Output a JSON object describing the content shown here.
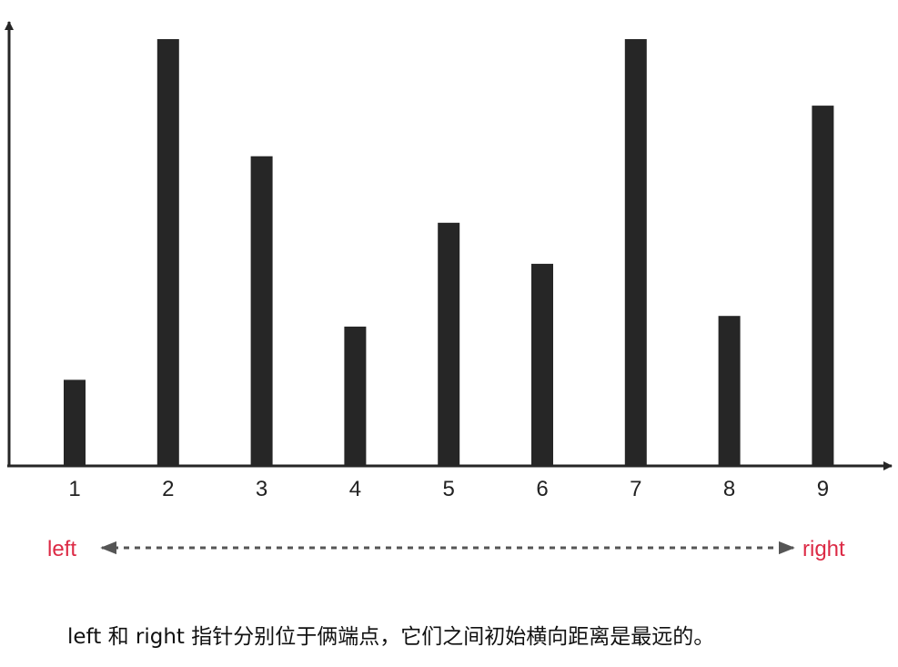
{
  "chart_data": {
    "type": "bar",
    "categories": [
      "1",
      "2",
      "3",
      "4",
      "5",
      "6",
      "7",
      "8",
      "9"
    ],
    "values": [
      1.6,
      8.0,
      5.8,
      2.6,
      4.55,
      3.78,
      8.0,
      2.8,
      6.75
    ],
    "ylim": [
      0,
      8.2
    ],
    "bar_color": "#262626",
    "axis_color": "#262626",
    "grid": false
  },
  "pointers": {
    "left_label": "left",
    "right_label": "right",
    "color": "#dc2a45",
    "arrow_color": "#555555"
  },
  "caption": "left 和 right 指针分别位于俩端点，它们之间初始横向距离是最远的。"
}
